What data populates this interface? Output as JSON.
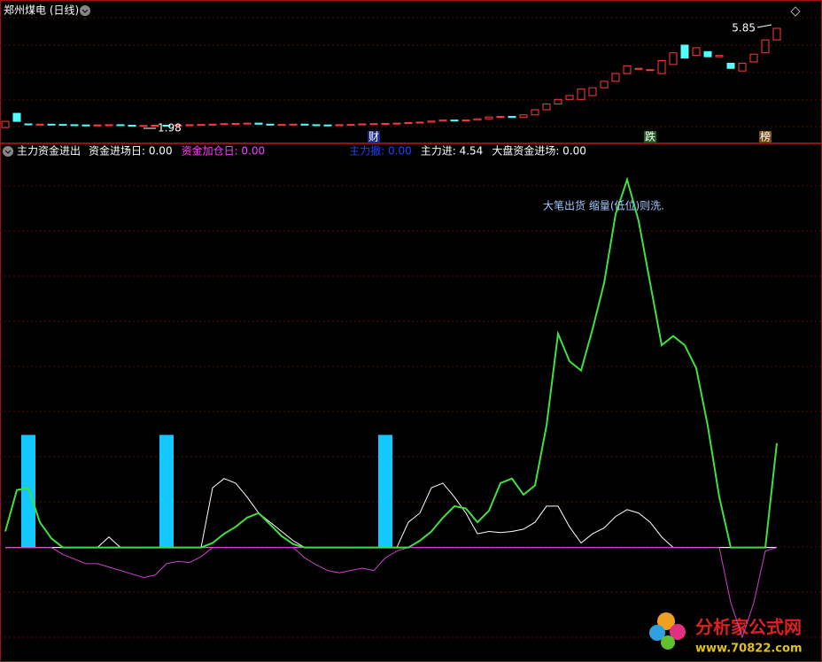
{
  "chart_data": [
    {
      "type": "candlestick",
      "title": "郑州煤电 (日线)",
      "open": [
        2.01,
        2.56,
        2.15,
        2.12,
        2.14,
        2.13,
        2.12,
        2.11,
        2.1,
        2.11,
        2.12,
        2.1,
        2.08,
        2.09,
        2.1,
        2.09,
        2.11,
        2.12,
        2.13,
        2.14,
        2.16,
        2.17,
        2.18,
        2.14,
        2.12,
        2.13,
        2.14,
        2.12,
        2.11,
        2.1,
        2.12,
        2.13,
        2.15,
        2.16,
        2.17,
        2.18,
        2.2,
        2.22,
        2.26,
        2.3,
        2.28,
        2.3,
        2.35,
        2.42,
        2.44,
        2.4,
        2.5,
        2.7,
        2.92,
        3.1,
        3.1,
        3.25,
        3.55,
        3.8,
        4.1,
        4.3,
        4.25,
        4.1,
        4.45,
        5.2,
        4.8,
        4.95,
        4.75,
        4.5,
        4.2,
        4.55,
        4.9,
        5.4
      ],
      "close": [
        2.25,
        2.25,
        2.12,
        2.14,
        2.13,
        2.12,
        2.11,
        2.1,
        2.11,
        2.12,
        2.1,
        2.08,
        2.09,
        2.1,
        2.09,
        2.11,
        2.12,
        2.13,
        2.14,
        2.16,
        2.17,
        2.18,
        2.14,
        2.12,
        2.13,
        2.14,
        2.12,
        2.11,
        2.1,
        2.12,
        2.13,
        2.15,
        2.16,
        2.17,
        2.18,
        2.2,
        2.22,
        2.26,
        2.3,
        2.28,
        2.3,
        2.35,
        2.42,
        2.44,
        2.4,
        2.5,
        2.7,
        2.92,
        3.1,
        3.25,
        3.5,
        3.55,
        3.8,
        4.1,
        4.4,
        4.3,
        4.25,
        4.6,
        4.9,
        4.7,
        5.1,
        4.75,
        4.8,
        4.3,
        4.5,
        4.85,
        5.4,
        5.85
      ],
      "up_color": "#ff3c3c",
      "down_color": "#54ffff",
      "annotations": [
        {
          "value": 5.85,
          "at": 67
        },
        {
          "value": 1.98,
          "at": 12
        }
      ],
      "events": [
        {
          "label": "财",
          "at": 32,
          "color": "#1c2c8c"
        },
        {
          "label": "跌",
          "at": 56,
          "color": "#1f5c1f"
        },
        {
          "label": "榜",
          "at": 66,
          "color": "#7a4a12"
        }
      ]
    },
    {
      "type": "line",
      "title": "主力资金进出",
      "indicators": [
        {
          "text": "资金进场日: 0.00",
          "color": "#ffffff"
        },
        {
          "text": "资金加仓日: 0.00",
          "color": "#ff40ff"
        },
        {
          "text": "主力撤: 0.00",
          "color": "#2040ff"
        },
        {
          "text": "主力进: 4.54",
          "color": "#ffffff"
        },
        {
          "text": "大盘资金进场: 0.00",
          "color": "#ffffff"
        }
      ],
      "series": [
        {
          "color": "#ffffff",
          "width": 1,
          "values": [
            0,
            0,
            0,
            0,
            0,
            0,
            0,
            0,
            0,
            0.46,
            0,
            0,
            0,
            0,
            0,
            0,
            0,
            0,
            2.6,
            3.0,
            2.8,
            2.2,
            1.5,
            1.1,
            0.7,
            0.3,
            0,
            0,
            0,
            0,
            0,
            0,
            0,
            0,
            0,
            1.1,
            1.5,
            2.6,
            2.8,
            2.2,
            1.5,
            0.6,
            0.7,
            0.65,
            0.7,
            0.8,
            1.1,
            1.8,
            1.8,
            0.9,
            0.2,
            0.6,
            0.85,
            1.35,
            1.65,
            1.5,
            1.1,
            0.46,
            0,
            0,
            0,
            0,
            0,
            0,
            0,
            0,
            0,
            0
          ]
        },
        {
          "color": "#d040d0",
          "width": 1,
          "values": [
            0,
            0,
            0,
            0,
            0,
            -0.3,
            -0.5,
            -0.7,
            -0.7,
            -0.85,
            -1.0,
            -1.15,
            -1.3,
            -1.2,
            -0.7,
            -0.6,
            -0.65,
            -0.4,
            0,
            0,
            0,
            0,
            0,
            0,
            0,
            0,
            -0.45,
            -0.75,
            -1.0,
            -1.1,
            -1.0,
            -0.9,
            -1.0,
            -0.45,
            -0.15,
            0,
            0,
            0,
            0,
            0,
            0,
            0,
            0,
            0,
            0,
            0,
            0,
            0,
            0,
            0,
            0,
            0,
            0,
            0,
            0,
            0,
            0,
            0,
            0,
            0,
            0,
            0,
            0,
            -2.4,
            -3.9,
            -2.4,
            -0.15,
            0
          ]
        },
        {
          "color": "#40e040",
          "width": 2,
          "values": [
            0.7,
            2.5,
            2.6,
            1.1,
            0.4,
            0,
            0,
            0,
            0,
            0,
            0,
            0,
            0,
            0,
            0,
            0,
            0,
            0,
            0.2,
            0.6,
            0.9,
            1.3,
            1.5,
            1.0,
            0.5,
            0.15,
            0,
            0,
            0,
            0,
            0,
            0,
            0,
            0,
            0,
            0,
            0.3,
            0.7,
            1.3,
            1.8,
            1.7,
            1.1,
            1.6,
            2.8,
            3.0,
            2.3,
            2.7,
            5.3,
            9.3,
            8.1,
            7.7,
            9.5,
            11.5,
            14.5,
            16.0,
            14.2,
            11.5,
            8.8,
            9.2,
            8.8,
            7.8,
            5.3,
            2.2,
            0,
            0,
            0,
            0,
            4.54
          ]
        }
      ],
      "bars": {
        "color": "#12c8ff",
        "at": [
          2,
          14,
          33
        ],
        "values": [
          4.9,
          4.9,
          4.9
        ]
      },
      "annotation": "大笔出货 缩量(低位)则洗."
    }
  ],
  "watermark": {
    "title": "分析家公式网",
    "url": "www.70822.com"
  }
}
